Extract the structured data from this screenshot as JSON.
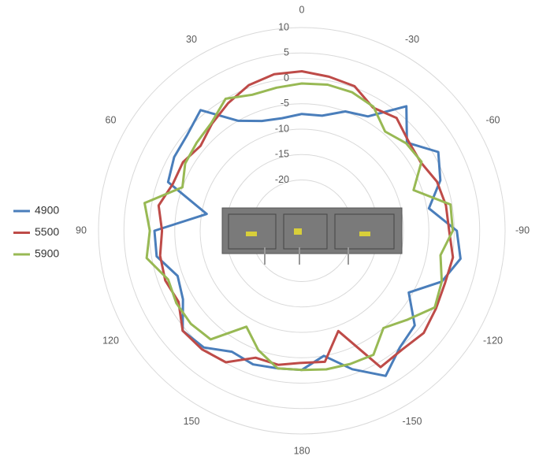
{
  "chart_data": {
    "type": "polar",
    "rlim": [
      -30,
      10
    ],
    "rticks": [
      -20,
      -15,
      -10,
      -5,
      0,
      5,
      10
    ],
    "thetaticks": [
      0,
      30,
      60,
      90,
      120,
      150,
      180,
      -150,
      -120,
      -90,
      -60,
      -30
    ],
    "x": [
      0,
      10,
      20,
      30,
      40,
      50,
      60,
      70,
      80,
      90,
      100,
      110,
      120,
      130,
      140,
      150,
      160,
      170,
      180,
      -170,
      -160,
      -150,
      -140,
      -130,
      -120,
      -110,
      -100,
      -90,
      -80,
      -70,
      -60,
      -50,
      -40,
      -30,
      -20,
      -10
    ],
    "series": [
      {
        "name": "4900",
        "color": "#4a7ebb",
        "values": [
          -7,
          -7.5,
          -7,
          -5,
          1,
          -0.6,
          -1,
          -2,
          -11,
          -1,
          -1,
          -4,
          -3,
          0.6,
          0,
          -2.5,
          -2,
          -2.5,
          -2.6,
          -5,
          -1,
          3,
          0,
          -1,
          -5.7,
          -0.7,
          1.7,
          0.5,
          -4.6,
          -1,
          1,
          -3,
          2,
          -4,
          -5,
          -7
        ]
      },
      {
        "name": "5500",
        "color": "#be4b48",
        "values": [
          1.4,
          1.3,
          0.5,
          -1,
          -2.5,
          -4,
          -3,
          -3,
          -1.4,
          -2.5,
          -1.7,
          -1.4,
          -2,
          0.6,
          0.5,
          -0.1,
          -3.4,
          -3.2,
          -4,
          -3.8,
          -9,
          1,
          0.6,
          1.3,
          0.5,
          0,
          0.2,
          -1,
          -1.2,
          -1.7,
          -3,
          -2.6,
          -1,
          -2,
          0.3,
          0.8
        ]
      },
      {
        "name": "5900",
        "color": "#98b954",
        "values": [
          -1,
          -1.4,
          -1.5,
          0,
          -2.3,
          -3,
          -3.5,
          -5,
          1.4,
          -0.1,
          1,
          -2,
          -1.5,
          -1.5,
          -2.1,
          -8.2,
          -5,
          -2.5,
          -2.6,
          -2.3,
          -2.1,
          -1.8,
          -5,
          -2.8,
          0.2,
          -0.7,
          -2.3,
          -0.3,
          -0.3,
          -6.6,
          -2.8,
          -3.2,
          -4.5,
          -1.8,
          -1,
          -0.8
        ]
      }
    ]
  }
}
